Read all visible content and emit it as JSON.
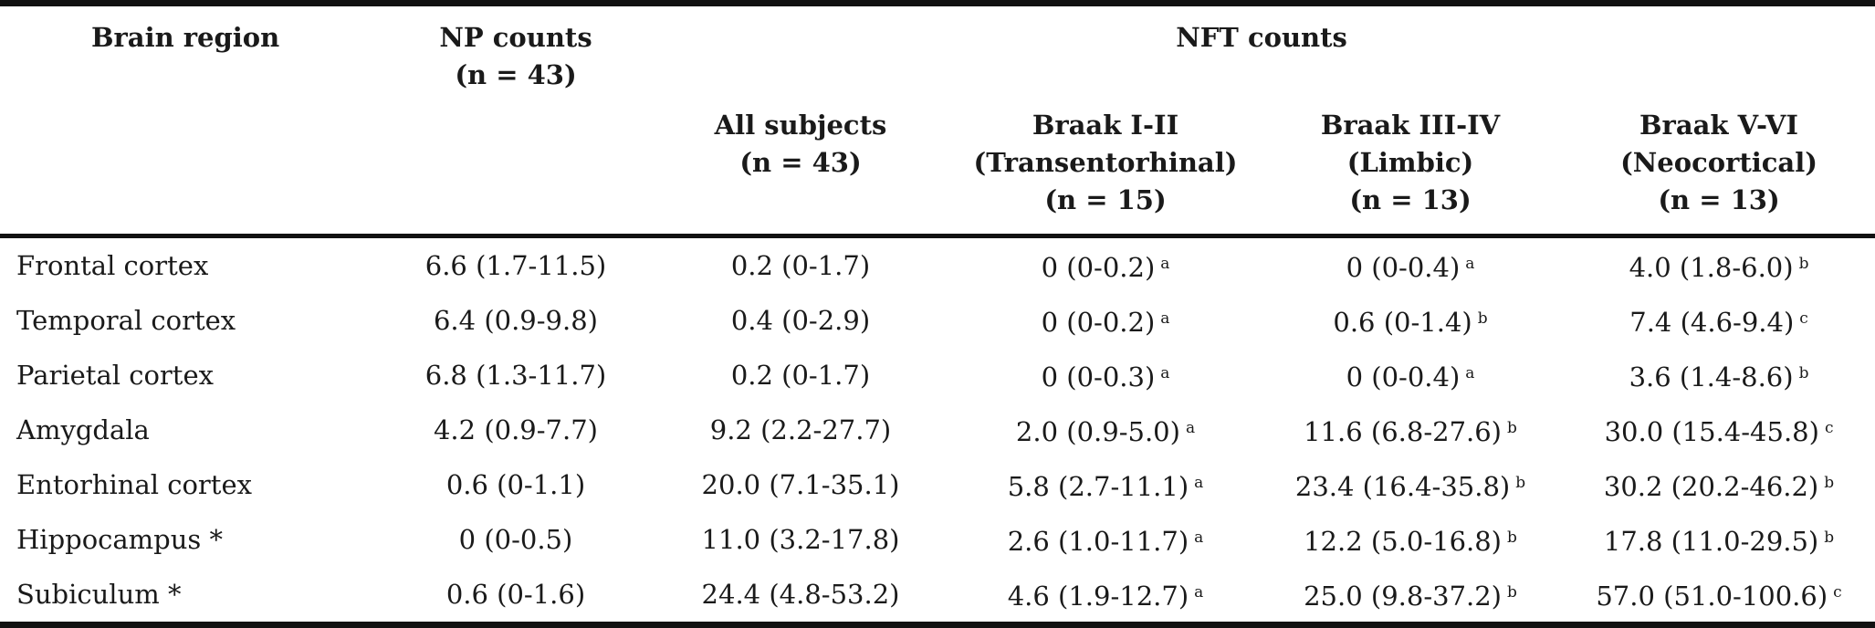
{
  "header": {
    "brain_region": "Brain region",
    "np_counts": [
      "NP counts",
      "(n = 43)"
    ],
    "nft_counts": "NFT counts",
    "subcolumns": [
      {
        "lines": [
          "All subjects",
          "(n = 43)"
        ]
      },
      {
        "lines": [
          "Braak I-II",
          "(Transentorhinal)",
          "(n = 15)"
        ]
      },
      {
        "lines": [
          "Braak III-IV",
          "(Limbic)",
          "(n = 13)"
        ]
      },
      {
        "lines": [
          "Braak V-VI",
          "(Neocortical)",
          "(n = 13)"
        ]
      }
    ]
  },
  "rows": [
    {
      "region": "Frontal cortex",
      "np": "6.6 (1.7-11.5)",
      "all": "0.2 (0-1.7)",
      "b12": "0 (0-0.2)",
      "b12_mark": "a",
      "b34": "0 (0-0.4)",
      "b34_mark": "a",
      "b56": "4.0 (1.8-6.0)",
      "b56_mark": "b"
    },
    {
      "region": "Temporal cortex",
      "np": "6.4 (0.9-9.8)",
      "all": "0.4 (0-2.9)",
      "b12": "0 (0-0.2)",
      "b12_mark": "a",
      "b34": "0.6 (0-1.4)",
      "b34_mark": "b",
      "b56": "7.4 (4.6-9.4)",
      "b56_mark": "c"
    },
    {
      "region": "Parietal cortex",
      "np": "6.8 (1.3-11.7)",
      "all": "0.2 (0-1.7)",
      "b12": "0 (0-0.3)",
      "b12_mark": "a",
      "b34": "0 (0-0.4)",
      "b34_mark": "a",
      "b56": "3.6 (1.4-8.6)",
      "b56_mark": "b"
    },
    {
      "region": "Amygdala",
      "np": "4.2 (0.9-7.7)",
      "all": "9.2 (2.2-27.7)",
      "b12": "2.0 (0.9-5.0)",
      "b12_mark": "a",
      "b34": "11.6 (6.8-27.6)",
      "b34_mark": "b",
      "b56": "30.0 (15.4-45.8)",
      "b56_mark": "c"
    },
    {
      "region": "Entorhinal cortex",
      "np": "0.6 (0-1.1)",
      "all": "20.0 (7.1-35.1)",
      "b12": "5.8 (2.7-11.1)",
      "b12_mark": "a",
      "b34": "23.4 (16.4-35.8)",
      "b34_mark": "b",
      "b56": "30.2 (20.2-46.2)",
      "b56_mark": "b"
    },
    {
      "region": "Hippocampus *",
      "np": "0 (0-0.5)",
      "all": "11.0 (3.2-17.8)",
      "b12": "2.6 (1.0-11.7)",
      "b12_mark": "a",
      "b34": "12.2 (5.0-16.8)",
      "b34_mark": "b",
      "b56": "17.8 (11.0-29.5)",
      "b56_mark": "b"
    },
    {
      "region": "Subiculum *",
      "np": "0.6 (0-1.6)",
      "all": "24.4 (4.8-53.2)",
      "b12": "4.6 (1.9-12.7)",
      "b12_mark": "a",
      "b34": "25.0 (9.8-37.2)",
      "b34_mark": "b",
      "b56": "57.0 (51.0-100.6)",
      "b56_mark": "c"
    }
  ]
}
